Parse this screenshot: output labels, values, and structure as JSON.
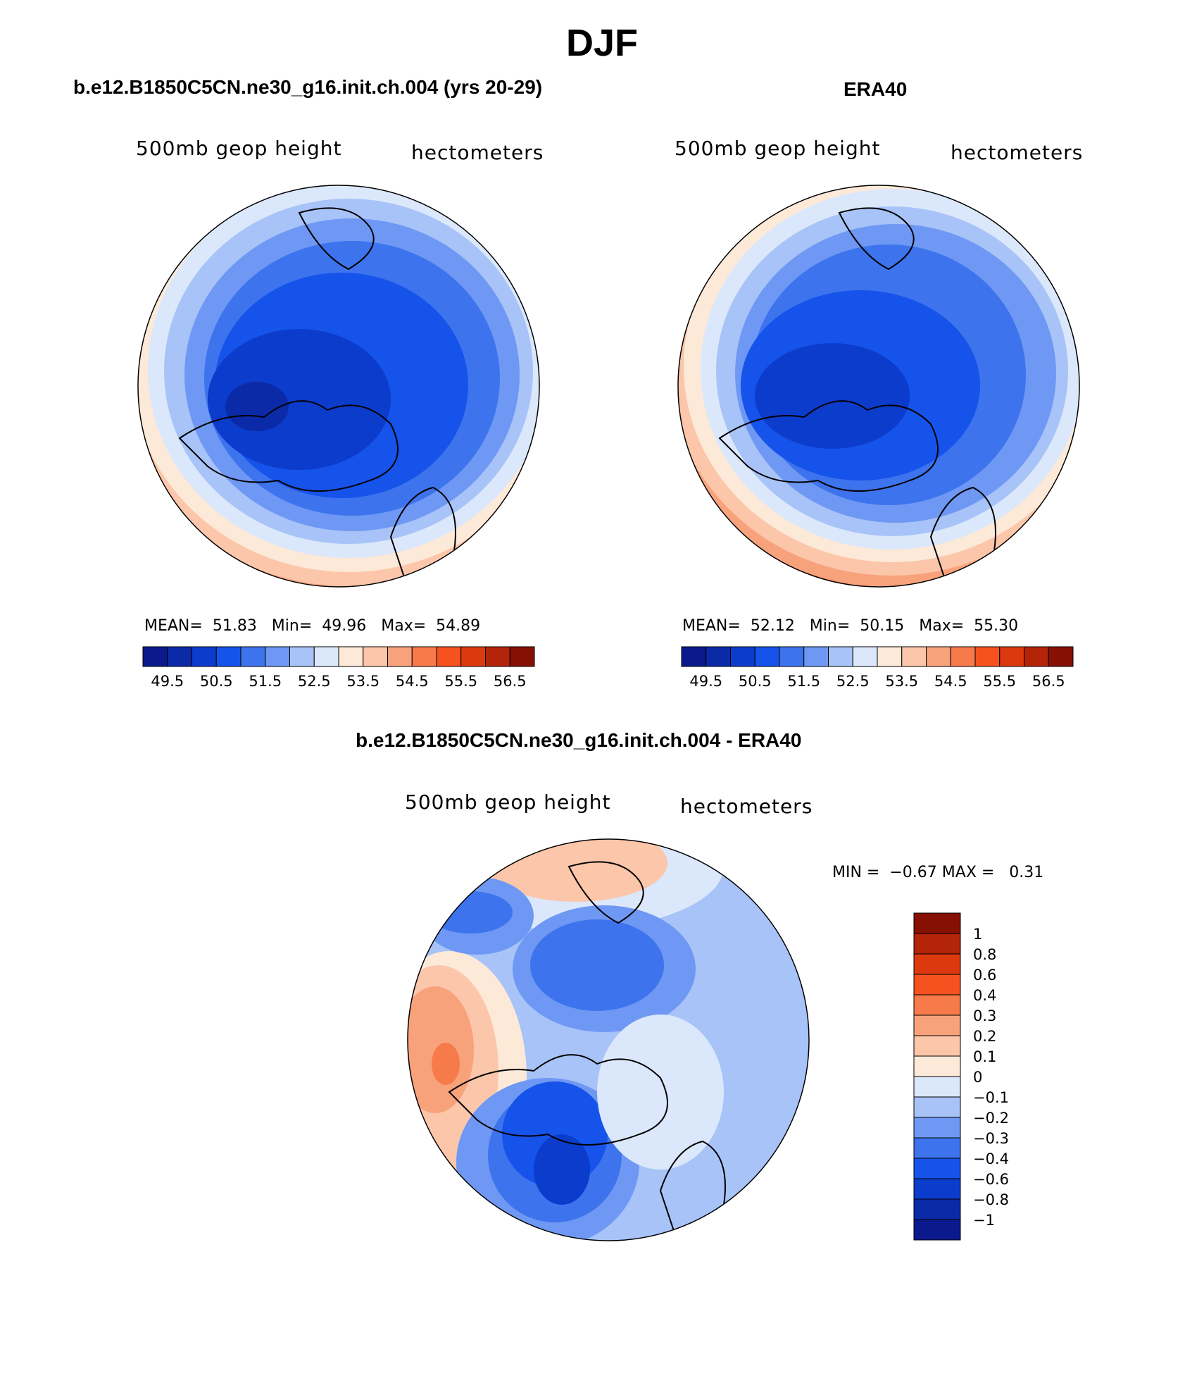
{
  "figure": {
    "title": "DJF"
  },
  "colors": {
    "blue": [
      "#0a1a8c",
      "#0a2aa8",
      "#0c3ccc",
      "#1553ea",
      "#3d73ed",
      "#6e98f3",
      "#a8c3f7",
      "#dbe8fb"
    ],
    "red": [
      "#fde9d8",
      "#fcc6aa",
      "#f8a27c",
      "#f77a4a",
      "#f5521f",
      "#dc3a0e",
      "#b32409",
      "#861004"
    ]
  },
  "panels": {
    "model": {
      "title": "b.e12.B1850C5CN.ne30_g16.init.ch.004 (yrs 20-29)",
      "variable": "500mb geop height",
      "units": "hectometers",
      "stats": {
        "mean_label": "MEAN=",
        "mean": "51.83",
        "min_label": "Min=",
        "min": "49.96",
        "max_label": "Max=",
        "max": "54.89"
      },
      "colorbar": {
        "levels": [
          49.5,
          50.0,
          50.5,
          51.0,
          51.5,
          52.0,
          52.5,
          53.0,
          53.5,
          54.0,
          54.5,
          55.0,
          55.5,
          56.0,
          56.5
        ],
        "labels": [
          "49.5",
          "50.5",
          "51.5",
          "52.5",
          "53.5",
          "54.5",
          "55.5",
          "56.5"
        ]
      }
    },
    "obs": {
      "title": "ERA40",
      "variable": "500mb geop height",
      "units": "hectometers",
      "stats": {
        "mean_label": "MEAN=",
        "mean": "52.12",
        "min_label": "Min=",
        "min": "50.15",
        "max_label": "Max=",
        "max": "55.30"
      },
      "colorbar": {
        "levels": [
          49.5,
          50.0,
          50.5,
          51.0,
          51.5,
          52.0,
          52.5,
          53.0,
          53.5,
          54.0,
          54.5,
          55.0,
          55.5,
          56.0,
          56.5
        ],
        "labels": [
          "49.5",
          "50.5",
          "51.5",
          "52.5",
          "53.5",
          "54.5",
          "55.5",
          "56.5"
        ]
      }
    },
    "diff": {
      "title": "b.e12.B1850C5CN.ne30_g16.init.ch.004 - ERA40",
      "variable": "500mb geop height",
      "units": "hectometers",
      "stats": {
        "min_label": "MIN =",
        "min": "−0.67",
        "max_label": "MAX =",
        "max": "0.31"
      },
      "colorbar": {
        "levels": [
          "1",
          "0.8",
          "0.6",
          "0.4",
          "0.3",
          "0.2",
          "0.1",
          "0",
          "−0.1",
          "−0.2",
          "−0.3",
          "−0.4",
          "−0.6",
          "−0.8",
          "−1"
        ]
      }
    }
  }
}
